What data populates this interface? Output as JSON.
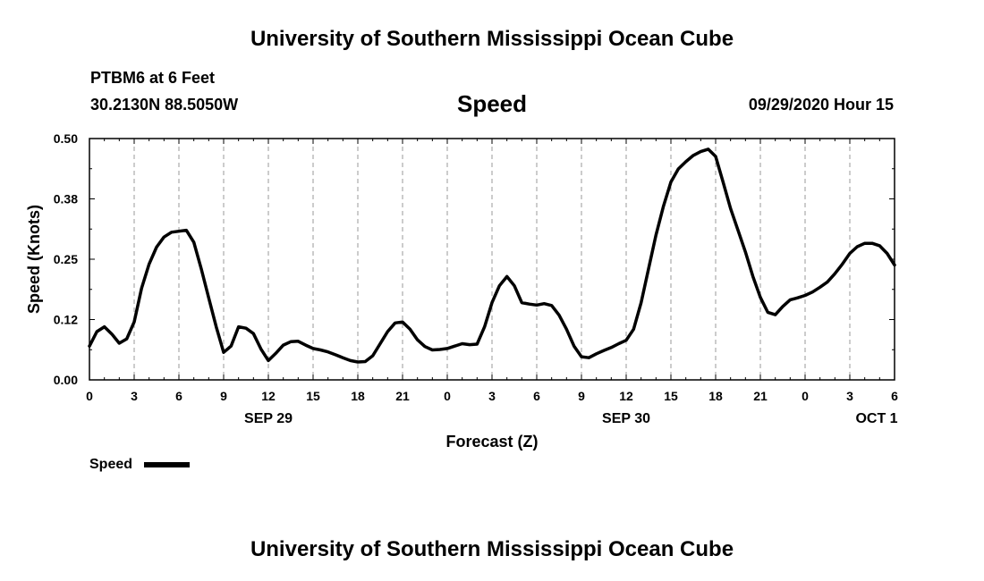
{
  "header": {
    "org_title": "University of Southern Mississippi Ocean Cube",
    "station": "PTBM6 at 6 Feet",
    "coords": "30.2130N 88.5050W",
    "chart_title": "Speed",
    "timestamp": "09/29/2020 Hour 15"
  },
  "footer": {
    "org_title": "University of Southern Mississippi Ocean Cube"
  },
  "chart_data": {
    "type": "line",
    "title": "Speed",
    "xlabel": "Forecast (Z)",
    "ylabel": "Speed (Knots)",
    "x_range_hours": [
      0,
      54
    ],
    "ylim": [
      0,
      0.5
    ],
    "y_ticks": [
      {
        "value": 0,
        "label": "0.00"
      },
      {
        "value": 0.125,
        "label": "0.12"
      },
      {
        "value": 0.25,
        "label": "0.25"
      },
      {
        "value": 0.375,
        "label": "0.38"
      },
      {
        "value": 0.5,
        "label": "0.50"
      }
    ],
    "x_tick_labels": [
      "0",
      "3",
      "6",
      "9",
      "12",
      "15",
      "18",
      "21",
      "0",
      "3",
      "6",
      "9",
      "12",
      "15",
      "18",
      "21",
      "0",
      "3",
      "6"
    ],
    "date_labels": [
      {
        "hour": 12,
        "label": "SEP 29"
      },
      {
        "hour": 36,
        "label": "SEP 30"
      },
      {
        "hour": 52.8,
        "label": "OCT 1"
      }
    ],
    "grid": "dashed vertical every 3 hours",
    "legend": {
      "label": "Speed",
      "placement": "bottom-left"
    },
    "series": [
      {
        "name": "Speed",
        "color": "#000000",
        "x": [
          0,
          0.5,
          1,
          1.5,
          2,
          2.5,
          3,
          3.5,
          4,
          4.5,
          5,
          5.5,
          6,
          6.5,
          7,
          7.5,
          8,
          8.5,
          9,
          9.5,
          10,
          10.5,
          11,
          11.5,
          12,
          12.5,
          13,
          13.5,
          14,
          14.5,
          15,
          15.5,
          16,
          16.5,
          17,
          17.5,
          18,
          18.5,
          19,
          19.5,
          20,
          20.5,
          21,
          21.5,
          22,
          22.5,
          23,
          23.5,
          24,
          24.5,
          25,
          25.5,
          26,
          26.5,
          27,
          27.5,
          28,
          28.5,
          29,
          29.5,
          30,
          30.5,
          31,
          31.5,
          32,
          32.5,
          33,
          33.5,
          34,
          34.5,
          35,
          35.5,
          36,
          36.5,
          37,
          37.5,
          38,
          38.5,
          39,
          39.5,
          40,
          40.5,
          41,
          41.5,
          42,
          42.5,
          43,
          43.5,
          44,
          44.5,
          45,
          45.5,
          46,
          46.5,
          47,
          47.5,
          48,
          48.5,
          49,
          49.5,
          50,
          50.5,
          51,
          51.5,
          52,
          52.5,
          53,
          53.5,
          54
        ],
        "y": [
          0.07,
          0.1,
          0.11,
          0.095,
          0.076,
          0.085,
          0.12,
          0.19,
          0.24,
          0.275,
          0.296,
          0.306,
          0.308,
          0.31,
          0.285,
          0.23,
          0.17,
          0.11,
          0.057,
          0.07,
          0.11,
          0.107,
          0.096,
          0.064,
          0.04,
          0.055,
          0.072,
          0.079,
          0.08,
          0.072,
          0.065,
          0.062,
          0.058,
          0.052,
          0.046,
          0.04,
          0.037,
          0.038,
          0.05,
          0.075,
          0.1,
          0.118,
          0.12,
          0.105,
          0.083,
          0.069,
          0.062,
          0.063,
          0.065,
          0.07,
          0.075,
          0.073,
          0.074,
          0.11,
          0.16,
          0.195,
          0.214,
          0.195,
          0.16,
          0.157,
          0.155,
          0.158,
          0.154,
          0.134,
          0.105,
          0.07,
          0.048,
          0.046,
          0.054,
          0.061,
          0.067,
          0.075,
          0.082,
          0.105,
          0.16,
          0.23,
          0.3,
          0.36,
          0.41,
          0.437,
          0.452,
          0.465,
          0.473,
          0.478,
          0.463,
          0.41,
          0.355,
          0.31,
          0.265,
          0.214,
          0.171,
          0.14,
          0.135,
          0.152,
          0.166,
          0.17,
          0.175,
          0.182,
          0.192,
          0.203,
          0.22,
          0.24,
          0.262,
          0.276,
          0.283,
          0.283,
          0.278,
          0.262,
          0.238
        ]
      }
    ]
  }
}
